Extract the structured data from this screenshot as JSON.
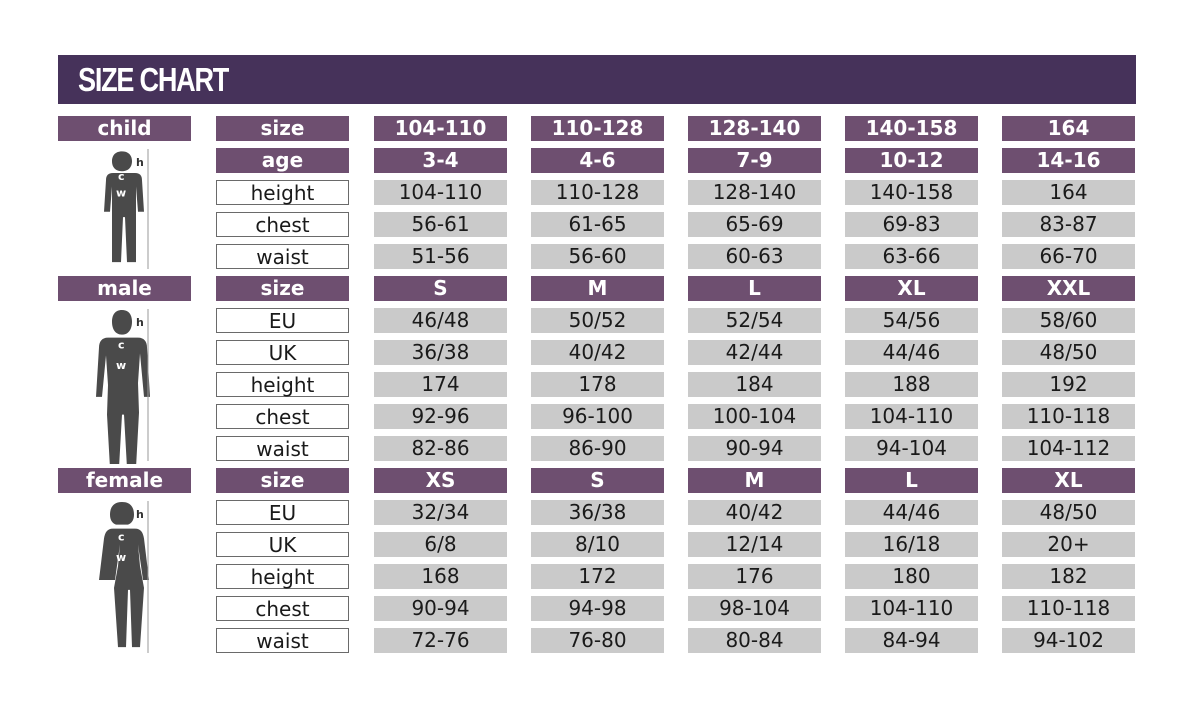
{
  "title": "SIZE CHART",
  "colors": {
    "header": "#46325a",
    "cell_purple": "#6e4f70",
    "cell_gray": "#cacaca"
  },
  "sections": [
    {
      "name": "child",
      "figure_labels": {
        "height": "h",
        "chest": "c",
        "waist": "w"
      },
      "rows": [
        {
          "label": "size",
          "header": true,
          "values": [
            "104-110",
            "110-128",
            "128-140",
            "140-158",
            "164"
          ]
        },
        {
          "label": "age",
          "header": true,
          "values": [
            "3-4",
            "4-6",
            "7-9",
            "10-12",
            "14-16"
          ]
        },
        {
          "label": "height",
          "values": [
            "104-110",
            "110-128",
            "128-140",
            "140-158",
            "164"
          ]
        },
        {
          "label": "chest",
          "values": [
            "56-61",
            "61-65",
            "65-69",
            "69-83",
            "83-87"
          ]
        },
        {
          "label": "waist",
          "values": [
            "51-56",
            "56-60",
            "60-63",
            "63-66",
            "66-70"
          ]
        }
      ]
    },
    {
      "name": "male",
      "figure_labels": {
        "height": "h",
        "chest": "c",
        "waist": "w"
      },
      "rows": [
        {
          "label": "size",
          "header": true,
          "values": [
            "S",
            "M",
            "L",
            "XL",
            "XXL"
          ]
        },
        {
          "label": "EU",
          "values": [
            "46/48",
            "50/52",
            "52/54",
            "54/56",
            "58/60"
          ]
        },
        {
          "label": "UK",
          "values": [
            "36/38",
            "40/42",
            "42/44",
            "44/46",
            "48/50"
          ]
        },
        {
          "label": "height",
          "values": [
            "174",
            "178",
            "184",
            "188",
            "192"
          ]
        },
        {
          "label": "chest",
          "values": [
            "92-96",
            "96-100",
            "100-104",
            "104-110",
            "110-118"
          ]
        },
        {
          "label": "waist",
          "values": [
            "82-86",
            "86-90",
            "90-94",
            "94-104",
            "104-112"
          ]
        }
      ]
    },
    {
      "name": "female",
      "figure_labels": {
        "height": "h",
        "chest": "c",
        "waist": "w"
      },
      "rows": [
        {
          "label": "size",
          "header": true,
          "values": [
            "XS",
            "S",
            "M",
            "L",
            "XL"
          ]
        },
        {
          "label": "EU",
          "values": [
            "32/34",
            "36/38",
            "40/42",
            "44/46",
            "48/50"
          ]
        },
        {
          "label": "UK",
          "values": [
            "6/8",
            "8/10",
            "12/14",
            "16/18",
            "20+"
          ]
        },
        {
          "label": "height",
          "values": [
            "168",
            "172",
            "176",
            "180",
            "182"
          ]
        },
        {
          "label": "chest",
          "values": [
            "90-94",
            "94-98",
            "98-104",
            "104-110",
            "110-118"
          ]
        },
        {
          "label": "waist",
          "values": [
            "72-76",
            "76-80",
            "80-84",
            "84-94",
            "94-102"
          ]
        }
      ]
    }
  ]
}
